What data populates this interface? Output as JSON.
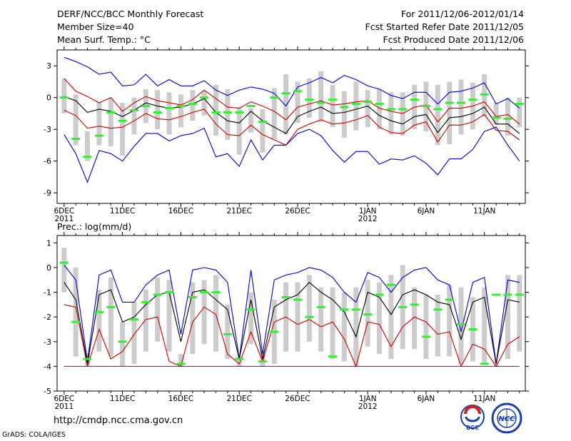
{
  "header": {
    "title": "DERF/NCC/BCC Monthly Forecast",
    "member_size": "Member Size=40",
    "variable": "Mean Surf. Temp.: °C",
    "forecast_period": "For 2011/12/06-2012/01/14",
    "start_date": "Fcst Started Refer Date 2011/12/05",
    "produced_date": "Fcst Produced Date 2011/12/06"
  },
  "footer": {
    "url": "http://cmdp.ncc.cma.gov.cn",
    "grads_credit": "GrADS: COLA/IGES",
    "logo_bcc_text": "BCC",
    "logo_ncc_text": "NCC"
  },
  "colors": {
    "box": "#cccccc",
    "median": "#33ee33",
    "ensemble_mean": "#000000",
    "outer_bound": "#0000cc",
    "inner_bound": "#cc0000",
    "axis": "#000000"
  },
  "chart_data": [
    {
      "type": "box-line",
      "title": "Mean Surf. Temp.: °C",
      "xlabel": "",
      "ylabel": "°C",
      "ylim": [
        -10,
        4.5
      ],
      "yticks": [
        3,
        0,
        -3,
        -6,
        -9
      ],
      "x_range": [
        -0.6,
        39.5
      ],
      "xticks": [
        0,
        5,
        10,
        15,
        20,
        26,
        31,
        36
      ],
      "xtick_labels": [
        "6DEC",
        "11DEC",
        "16DEC",
        "21DEC",
        "26DEC",
        "1JAN",
        "6JAN",
        "11JAN"
      ],
      "year_labels": [
        {
          "x": 0,
          "label": "2011"
        },
        {
          "x": 26,
          "label": "2012"
        }
      ],
      "days": 40,
      "series": [
        {
          "name": "ensemble_max",
          "role": "outer_upper",
          "values": [
            3.8,
            3.4,
            2.9,
            2.2,
            2.4,
            1.1,
            1.2,
            2.2,
            1.1,
            1.7,
            1.1,
            1.1,
            1.6,
            0.7,
            0.2,
            0.7,
            1.0,
            0.8,
            0.4,
            -0.8,
            1.0,
            1.4,
            1.9,
            1.4,
            2.1,
            1.7,
            1.1,
            0.8,
            0.2,
            -0.1,
            0.5,
            0.5,
            -0.6,
            0.5,
            0.6,
            0.9,
            1.4,
            -0.6,
            -0.1,
            -1.0
          ]
        },
        {
          "name": "upper_inner",
          "role": "inner_upper",
          "values": [
            1.8,
            0.6,
            0.1,
            -0.5,
            0.0,
            -1.3,
            -0.5,
            0.1,
            -0.3,
            -0.5,
            -0.7,
            -0.2,
            0.7,
            -0.1,
            -0.9,
            -1.0,
            -0.4,
            -0.8,
            -1.3,
            -2.1,
            -0.9,
            -0.6,
            -0.3,
            -0.7,
            -0.6,
            -0.4,
            -0.3,
            -1.0,
            -1.3,
            -1.5,
            -0.9,
            -0.7,
            -2.3,
            -1.0,
            -1.0,
            -0.8,
            -0.4,
            -1.8,
            -1.6,
            -2.5
          ]
        },
        {
          "name": "ensemble_mean",
          "role": "mean",
          "values": [
            0.1,
            -0.3,
            -1.4,
            -1.1,
            -1.3,
            -1.8,
            -1.2,
            -0.5,
            -0.8,
            -1.0,
            -0.9,
            -0.6,
            -0.1,
            -1.4,
            -2.2,
            -2.4,
            -1.3,
            -2.2,
            -2.8,
            -3.4,
            -1.8,
            -1.3,
            -0.9,
            -1.5,
            -1.4,
            -1.1,
            -0.8,
            -1.7,
            -2.2,
            -2.5,
            -1.8,
            -1.6,
            -3.3,
            -1.9,
            -1.8,
            -1.5,
            -0.9,
            -2.5,
            -2.5,
            -3.4
          ]
        },
        {
          "name": "lower_inner",
          "role": "inner_lower",
          "values": [
            -1.2,
            -1.7,
            -2.9,
            -2.7,
            -2.9,
            -2.8,
            -2.2,
            -1.5,
            -2.0,
            -2.1,
            -1.8,
            -1.4,
            -1.1,
            -2.5,
            -3.5,
            -3.6,
            -2.6,
            -3.5,
            -4.0,
            -4.5,
            -3.0,
            -2.5,
            -2.1,
            -2.5,
            -2.4,
            -2.1,
            -1.7,
            -2.8,
            -3.3,
            -3.4,
            -2.6,
            -2.3,
            -4.2,
            -2.6,
            -2.6,
            -2.3,
            -1.6,
            -3.1,
            -3.2,
            -4.0
          ]
        },
        {
          "name": "ensemble_min",
          "role": "outer_lower",
          "values": [
            -3.5,
            -5.3,
            -8.0,
            -5.0,
            -5.3,
            -6.0,
            -4.6,
            -3.4,
            -3.4,
            -4.1,
            -3.6,
            -3.4,
            -2.9,
            -5.6,
            -5.3,
            -6.5,
            -4.0,
            -5.9,
            -4.5,
            -4.5,
            -3.4,
            -3.0,
            -3.6,
            -5.0,
            -6.1,
            -5.1,
            -5.1,
            -6.3,
            -5.8,
            -5.9,
            -5.5,
            -6.2,
            -7.3,
            -5.8,
            -5.8,
            -4.9,
            -3.2,
            -2.8,
            -4.5,
            -6.0
          ]
        },
        {
          "name": "median",
          "role": "median",
          "values": [
            0.0,
            -3.9,
            -5.6,
            -3.6,
            -1.4,
            -2.2,
            -1.2,
            -0.8,
            -1.4,
            -1.0,
            -0.8,
            -0.6,
            0.0,
            -1.4,
            -1.4,
            -1.4,
            -0.8,
            -2.3,
            0.0,
            0.4,
            0.6,
            -0.2,
            -0.5,
            -0.2,
            -0.9,
            -0.6,
            -0.4,
            -0.6,
            -1.1,
            -1.1,
            -0.2,
            -0.8,
            -1.1,
            -0.5,
            -0.5,
            -0.2,
            0.3,
            -1.9,
            -2.0,
            -0.6
          ]
        },
        {
          "name": "box_top",
          "role": "box_upper",
          "values": [
            1.8,
            0.3,
            -3.2,
            -0.4,
            -0.1,
            -0.5,
            0.0,
            0.8,
            0.7,
            0.5,
            0.3,
            0.7,
            0.6,
            1.2,
            0.8,
            -0.9,
            -1.0,
            -1.1,
            0.9,
            2.2,
            1.5,
            1.8,
            2.5,
            1.2,
            0.6,
            1.5,
            0.7,
            0.8,
            0.5,
            0.5,
            1.2,
            1.5,
            1.2,
            1.5,
            1.7,
            1.4,
            2.2,
            -0.5,
            0.0,
            0.0
          ]
        },
        {
          "name": "box_bottom",
          "role": "box_lower",
          "values": [
            -1.5,
            -4.5,
            -6.0,
            -4.5,
            -4.6,
            -5.5,
            -3.5,
            -2.4,
            -3.0,
            -3.5,
            -2.8,
            -2.2,
            -1.7,
            -3.6,
            -4.0,
            -5.4,
            -3.3,
            -5.2,
            -3.9,
            -3.5,
            -2.4,
            -1.9,
            -2.3,
            -2.8,
            -3.8,
            -3.1,
            -2.8,
            -3.0,
            -3.5,
            -3.6,
            -3.0,
            -3.2,
            -4.5,
            -4.4,
            -3.5,
            -3.0,
            -1.8,
            -2.6,
            -3.6,
            -2.8
          ]
        }
      ]
    },
    {
      "type": "box-line",
      "title": "Prec.: log(mm/d)",
      "xlabel": "",
      "ylabel": "log(mm/d)",
      "ylim": [
        -5,
        1.3
      ],
      "yticks": [
        1,
        0,
        -1,
        -2,
        -3,
        -4,
        -5
      ],
      "x_range": [
        -0.6,
        39.5
      ],
      "xticks": [
        0,
        5,
        10,
        15,
        20,
        26,
        31,
        36
      ],
      "xtick_labels": [
        "6DEC",
        "11DEC",
        "16DEC",
        "21DEC",
        "26DEC",
        "1JAN",
        "6JAN",
        "11JAN"
      ],
      "year_labels": [
        {
          "x": 0,
          "label": "2011"
        },
        {
          "x": 26,
          "label": "2012"
        }
      ],
      "days": 40,
      "series": [
        {
          "name": "ensemble_max",
          "role": "outer_upper",
          "values": [
            0.1,
            -0.5,
            -3.8,
            -0.3,
            -0.1,
            -1.4,
            -1.4,
            -0.7,
            -0.3,
            -0.1,
            -2.7,
            -0.1,
            0.0,
            -0.1,
            -0.6,
            -3.7,
            -0.1,
            -3.5,
            -0.5,
            -0.3,
            -0.2,
            0.0,
            -0.1,
            -0.4,
            -1.0,
            -1.4,
            -0.2,
            -0.4,
            -1.0,
            -0.4,
            -0.1,
            0.0,
            -0.5,
            -0.7,
            -2.6,
            -0.6,
            -0.4,
            -3.9,
            -0.5,
            -0.6
          ]
        },
        {
          "name": "ensemble_mean",
          "role": "mean",
          "values": [
            -0.6,
            -1.3,
            -3.9,
            -1.1,
            -0.9,
            -2.2,
            -2.0,
            -1.5,
            -1.1,
            -1.0,
            -3.0,
            -1.0,
            -0.9,
            -1.3,
            -1.7,
            -3.7,
            -1.3,
            -3.7,
            -1.6,
            -1.3,
            -1.1,
            -0.6,
            -1.0,
            -1.3,
            -1.8,
            -2.8,
            -1.0,
            -1.2,
            -1.9,
            -1.1,
            -0.9,
            -1.1,
            -1.4,
            -1.5,
            -2.9,
            -1.4,
            -1.2,
            -3.9,
            -1.3,
            -1.4
          ]
        },
        {
          "name": "lower_inner",
          "role": "inner_lower",
          "values": [
            -1.5,
            -1.6,
            -4.0,
            -2.5,
            -3.7,
            -3.4,
            -2.7,
            -2.1,
            -2.0,
            -3.8,
            -4.0,
            -2.2,
            -1.6,
            -1.9,
            -3.5,
            -3.9,
            -2.6,
            -3.8,
            -2.2,
            -2.0,
            -2.3,
            -2.1,
            -2.4,
            -2.2,
            -2.9,
            -4.0,
            -2.2,
            -2.3,
            -3.2,
            -2.4,
            -2.0,
            -2.2,
            -2.7,
            -2.6,
            -4.0,
            -3.1,
            -3.3,
            -4.0,
            -3.1,
            -2.8
          ]
        },
        {
          "name": "median",
          "role": "median",
          "values": [
            0.2,
            -2.2,
            -3.7,
            -1.8,
            -1.6,
            -3.0,
            -2.1,
            -1.4,
            -1.1,
            -1.0,
            -3.9,
            -1.2,
            -1.0,
            -1.0,
            -2.7,
            -3.7,
            -1.7,
            -3.8,
            -2.6,
            -1.2,
            -1.3,
            -2.0,
            -1.6,
            -3.6,
            -1.7,
            -1.7,
            -1.9,
            -1.1,
            -0.7,
            -1.6,
            -1.5,
            -2.8,
            -1.7,
            -1.3,
            -2.3,
            -2.5,
            -3.9,
            -1.1,
            -1.1,
            -1.1
          ]
        },
        {
          "name": "box_top",
          "role": "box_upper",
          "values": [
            0.8,
            0.0,
            -3.5,
            -0.9,
            -0.4,
            -2.2,
            -1.4,
            -0.9,
            -0.4,
            -0.5,
            -3.5,
            -0.6,
            -0.5,
            -0.3,
            -1.5,
            -3.6,
            -1.0,
            -3.4,
            -1.3,
            -0.6,
            -0.6,
            -0.3,
            -0.8,
            -0.8,
            -1.0,
            -0.8,
            -0.5,
            -0.6,
            -0.3,
            0.1,
            -0.8,
            -1.1,
            -1.1,
            -0.7,
            -0.8,
            -1.2,
            -0.8,
            -3.8,
            -0.3,
            -0.3
          ]
        },
        {
          "name": "box_bottom",
          "role": "box_lower",
          "values": [
            -1.0,
            -3.6,
            -4.0,
            -3.4,
            -3.6,
            -4.0,
            -3.9,
            -3.4,
            -3.0,
            -3.4,
            -4.0,
            -3.5,
            -3.1,
            -3.4,
            -3.7,
            -4.0,
            -3.1,
            -4.0,
            -3.9,
            -3.4,
            -3.4,
            -3.0,
            -3.4,
            -3.7,
            -3.8,
            -4.0,
            -3.2,
            -3.5,
            -3.7,
            -3.3,
            -3.3,
            -3.7,
            -3.6,
            -3.6,
            -3.9,
            -3.8,
            -3.9,
            -4.0,
            -3.7,
            -3.4
          ]
        }
      ],
      "floor_value": -4
    }
  ]
}
